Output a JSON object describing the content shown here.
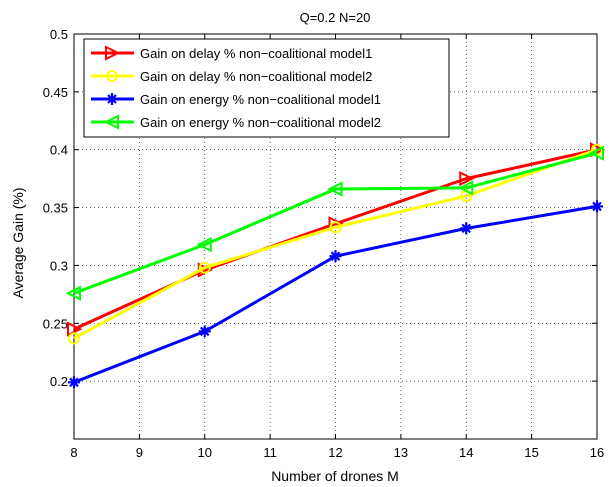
{
  "chart_data": {
    "type": "line",
    "title": "Q=0.2  N=20",
    "xlabel": "Number of drones M",
    "ylabel": "Average Gain (%)",
    "xlim": [
      8,
      16
    ],
    "ylim": [
      0.15,
      0.5
    ],
    "xticks": [
      8,
      9,
      10,
      11,
      12,
      13,
      14,
      15,
      16
    ],
    "yticks": [
      0.15,
      0.2,
      0.25,
      0.3,
      0.35,
      0.4,
      0.45,
      0.5
    ],
    "ytick_labels": [
      "",
      "0.2",
      "0.25",
      "0.3",
      "0.35",
      "0.4",
      "0.45",
      "0.5"
    ],
    "grid": true,
    "legend_position": "top-left",
    "x": [
      8,
      10,
      12,
      14,
      16
    ],
    "series": [
      {
        "name": "Gain on delay % non−coalitional model1",
        "values": [
          0.245,
          0.296,
          0.336,
          0.375,
          0.4
        ],
        "color": "#ff0000",
        "marker": "triangle-right"
      },
      {
        "name": "Gain on delay % non−coalitional model2",
        "values": [
          0.237,
          0.298,
          0.333,
          0.36,
          0.4
        ],
        "color": "#ffff00",
        "marker": "circle"
      },
      {
        "name": "Gain on energy % non−coalitional model1",
        "values": [
          0.199,
          0.243,
          0.308,
          0.332,
          0.351
        ],
        "color": "#0000ff",
        "marker": "star"
      },
      {
        "name": "Gain on energy % non−coalitional model2",
        "values": [
          0.276,
          0.318,
          0.366,
          0.367,
          0.397
        ],
        "color": "#00ff00",
        "marker": "triangle-left"
      }
    ]
  }
}
